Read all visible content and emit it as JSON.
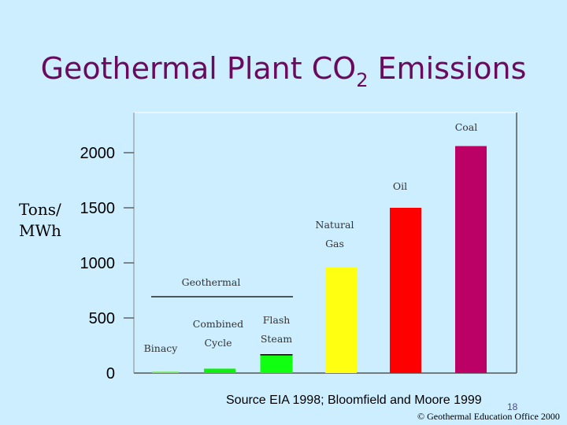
{
  "slide": {
    "title_main": "Geothermal Plant CO",
    "title_sub": "2",
    "title_tail": " Emissions",
    "ylabel_line1": "Tons/",
    "ylabel_line2": "MWh",
    "source": "Source EIA 1998; Bloomfield and Moore 1999",
    "slide_number": "18",
    "copyright": "© Geothermal Education Office 2000"
  },
  "chart_data": {
    "type": "bar",
    "title": "Geothermal Plant CO2 Emissions",
    "ylabel": "Tons/ MWh",
    "ylim": [
      0,
      2700
    ],
    "yticks": [
      0,
      500,
      1000,
      1500,
      2000
    ],
    "ytick_labels": [
      "0",
      "500",
      "1000",
      "1500",
      "2000"
    ],
    "group_label": "Geothermal",
    "categories": [
      {
        "label_lines": [
          "Binacy"
        ],
        "value": 0,
        "color": "#66ee44"
      },
      {
        "label_lines": [
          "Combined",
          "Cycle"
        ],
        "value": 40,
        "color": "#11ee11"
      },
      {
        "label_lines": [
          "Flash",
          "Steam"
        ],
        "value": 170,
        "color": "#11ff11"
      },
      {
        "label_lines": [
          "Natural",
          "Gas"
        ],
        "value": 960,
        "color": "#ffff11"
      },
      {
        "label_lines": [
          "Oil"
        ],
        "value": 1500,
        "color": "#ff0000"
      },
      {
        "label_lines": [
          "Coal"
        ],
        "value": 2060,
        "color": "#bb0066"
      }
    ]
  }
}
